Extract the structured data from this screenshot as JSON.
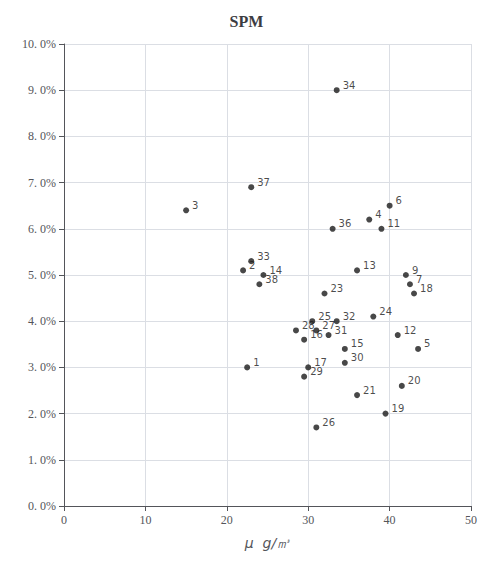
{
  "chart_data": {
    "type": "scatter",
    "title": "SPM",
    "xlabel": "μ  g/㎥",
    "xlim": [
      0,
      50
    ],
    "ylim": [
      0.0,
      0.1
    ],
    "xticks": [
      0,
      10,
      20,
      30,
      40,
      50
    ],
    "yticks": [
      {
        "value": 0.0,
        "label": "0. 0%"
      },
      {
        "value": 0.01,
        "label": "1. 0%"
      },
      {
        "value": 0.02,
        "label": "2. 0%"
      },
      {
        "value": 0.03,
        "label": "3. 0%"
      },
      {
        "value": 0.04,
        "label": "4. 0%"
      },
      {
        "value": 0.05,
        "label": "5. 0%"
      },
      {
        "value": 0.06,
        "label": "6. 0%"
      },
      {
        "value": 0.07,
        "label": "7. 0%"
      },
      {
        "value": 0.08,
        "label": "8. 0%"
      },
      {
        "value": 0.09,
        "label": "9. 0%"
      },
      {
        "value": 0.1,
        "label": "10. 0%"
      }
    ],
    "x": [
      22.5,
      22.0,
      15.0,
      37.5,
      43.5,
      40.0,
      42.5,
      42.0,
      39.0,
      41.0,
      36.0,
      24.5,
      34.5,
      29.5,
      30.0,
      43.0,
      39.5,
      41.5,
      36.0,
      32.0,
      38.0,
      30.5,
      31.0,
      31.0,
      28.5,
      29.5,
      34.5,
      32.5,
      33.5,
      23.0,
      33.5,
      33.0,
      23.0,
      24.0
    ],
    "values": [
      0.03,
      0.051,
      0.064,
      0.062,
      0.034,
      0.065,
      0.048,
      0.05,
      0.06,
      0.037,
      0.051,
      0.05,
      0.034,
      0.036,
      0.03,
      0.046,
      0.02,
      0.026,
      0.024,
      0.046,
      0.041,
      0.04,
      0.017,
      0.038,
      0.038,
      0.028,
      0.031,
      0.037,
      0.04,
      0.053,
      0.09,
      0.06,
      0.069,
      0.048
    ],
    "labels": [
      "1",
      "2",
      "3",
      "4",
      "5",
      "6",
      "7",
      "9",
      "11",
      "12",
      "13",
      "14",
      "15",
      "16",
      "17",
      "18",
      "19",
      "20",
      "21",
      "23",
      "24",
      "25",
      "26",
      "27",
      "28",
      "29",
      "30",
      "31",
      "32",
      "33",
      "34",
      "36",
      "37",
      "38"
    ],
    "color": "#1a1a1a",
    "marker": "circle",
    "grid": true
  }
}
